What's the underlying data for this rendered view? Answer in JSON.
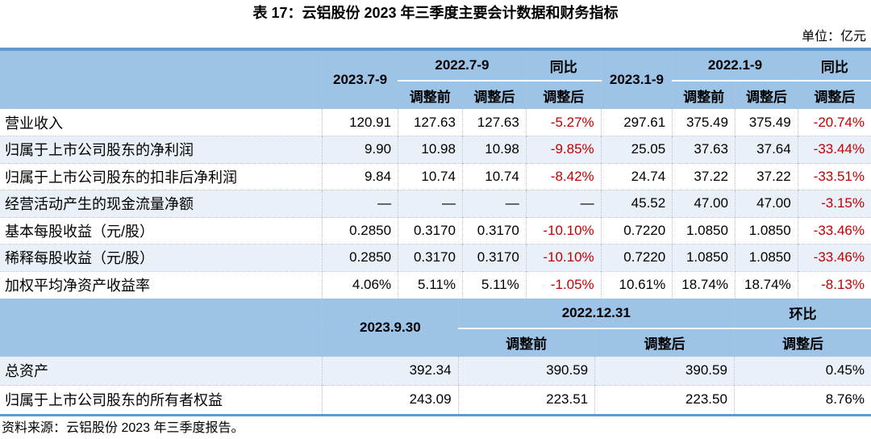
{
  "page": {
    "title": "表 17：云铝股份 2023 年三季度主要会计数据和财务指标",
    "unit": "单位：亿元",
    "source": "资料来源：云铝股份 2023 年三季度报告。"
  },
  "colors": {
    "header_bg": "#9DC3E6",
    "accent_border": "#5B9BD5",
    "band_row": "#E9F0F8",
    "negative": "#C00000"
  },
  "table1": {
    "header": {
      "period_q": "2023.7-9",
      "prev_q": "2022.7-9",
      "yoy_q": "同比",
      "period_ytd": "2023.1-9",
      "prev_ytd": "2022.1-9",
      "yoy_ytd": "同比"
    },
    "sub": [
      "调整前",
      "调整后",
      "调整后",
      "调整前",
      "调整后",
      "调整后"
    ],
    "rows": [
      {
        "label": "营业收入",
        "cells": [
          "120.91",
          "127.63",
          "127.63",
          "-5.27%",
          "297.61",
          "375.49",
          "375.49",
          "-20.74%"
        ]
      },
      {
        "label": "归属于上市公司股东的净利润",
        "cells": [
          "9.90",
          "10.98",
          "10.98",
          "-9.85%",
          "25.05",
          "37.63",
          "37.64",
          "-33.44%"
        ]
      },
      {
        "label": "归属于上市公司股东的扣非后净利润",
        "cells": [
          "9.84",
          "10.74",
          "10.74",
          "-8.42%",
          "24.74",
          "37.22",
          "37.22",
          "-33.51%"
        ]
      },
      {
        "label": "经营活动产生的现金流量净额",
        "cells": [
          "—",
          "—",
          "—",
          "—",
          "45.52",
          "47.00",
          "47.00",
          "-3.15%"
        ]
      },
      {
        "label": "基本每股收益（元/股）",
        "cells": [
          "0.2850",
          "0.3170",
          "0.3170",
          "-10.10%",
          "0.7220",
          "1.0850",
          "1.0850",
          "-33.46%"
        ]
      },
      {
        "label": "稀释每股收益（元/股）",
        "cells": [
          "0.2850",
          "0.3170",
          "0.3170",
          "-10.10%",
          "0.7220",
          "1.0850",
          "1.0850",
          "-33.46%"
        ]
      },
      {
        "label": "加权平均净资产收益率",
        "cells": [
          "4.06%",
          "5.11%",
          "5.11%",
          "-1.05%",
          "10.61%",
          "18.74%",
          "18.74%",
          "-8.13%"
        ]
      }
    ]
  },
  "table2": {
    "header": {
      "date_current": "2023.9.30",
      "date_prev": "2022.12.31",
      "qoq": "环比"
    },
    "sub": [
      "调整前",
      "调整后",
      "调整后"
    ],
    "rows": [
      {
        "label": "总资产",
        "cells": [
          "392.34",
          "390.59",
          "390.59",
          "0.45%"
        ]
      },
      {
        "label": "归属于上市公司股东的所有者权益",
        "cells": [
          "243.09",
          "223.51",
          "223.50",
          "8.76%"
        ]
      }
    ]
  }
}
